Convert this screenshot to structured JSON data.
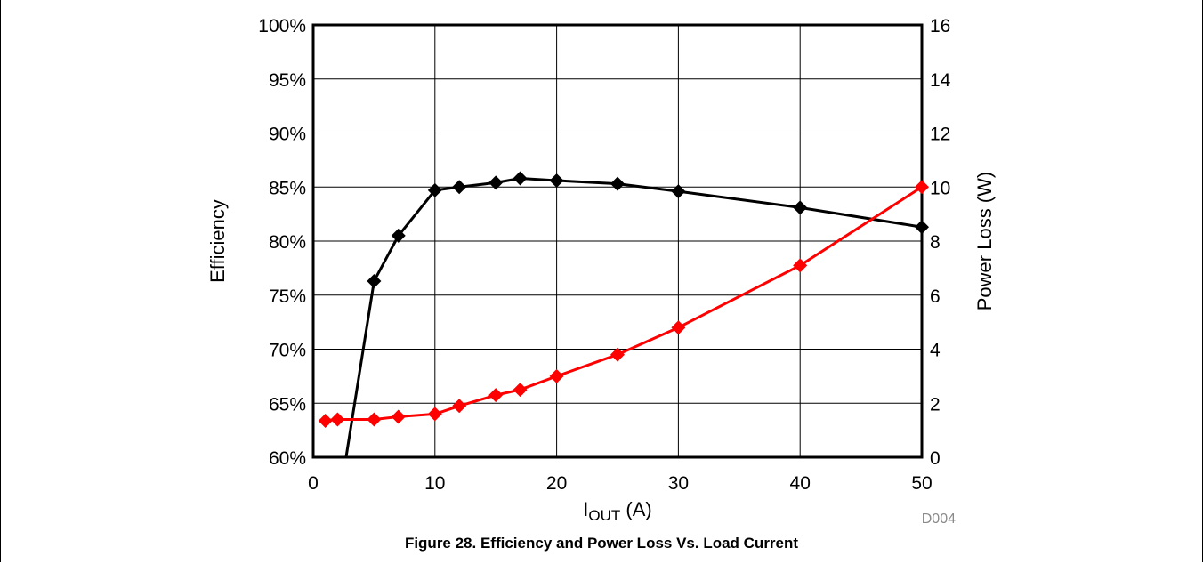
{
  "chart_data": {
    "type": "line",
    "title": "",
    "xlabel": {
      "main": "I",
      "sub": "OUT",
      "unit": " (A)"
    },
    "ylabel_left": "Efficiency",
    "ylabel_right": "Power Loss (W)",
    "xlim": [
      0,
      50
    ],
    "ylim_left": [
      60,
      100
    ],
    "ylim_right": [
      0,
      16
    ],
    "x_ticks": [
      "0",
      "10",
      "20",
      "30",
      "40",
      "50"
    ],
    "y_left_ticks": [
      "60%",
      "65%",
      "70%",
      "75%",
      "80%",
      "85%",
      "90%",
      "95%",
      "100%"
    ],
    "y_right_ticks": [
      "0",
      "2",
      "4",
      "6",
      "8",
      "10",
      "12",
      "14",
      "16"
    ],
    "grid": true,
    "series": [
      {
        "axis": "left",
        "color": "#000000",
        "x": [
          2.7,
          5,
          7,
          10,
          12,
          15,
          17,
          20,
          25,
          30,
          40,
          50
        ],
        "y": [
          60,
          76.3,
          80.5,
          84.7,
          85,
          85.4,
          85.8,
          85.6,
          85.3,
          84.6,
          83.1,
          81.3
        ],
        "markers": [
          false,
          true,
          true,
          true,
          true,
          true,
          true,
          true,
          true,
          true,
          true,
          true
        ]
      },
      {
        "axis": "right",
        "color": "#ff0000",
        "x": [
          1,
          2,
          5,
          7,
          10,
          12,
          15,
          17,
          20,
          25,
          30,
          40,
          50
        ],
        "y": [
          1.35,
          1.4,
          1.4,
          1.5,
          1.6,
          1.9,
          2.3,
          2.5,
          3.0,
          3.8,
          4.8,
          7.1,
          10.0
        ],
        "markers": [
          true,
          true,
          true,
          true,
          true,
          true,
          true,
          true,
          true,
          true,
          true,
          true,
          true
        ]
      }
    ]
  },
  "figure_code": "D004",
  "caption": "Figure 28. Efficiency and Power Loss Vs. Load Current"
}
